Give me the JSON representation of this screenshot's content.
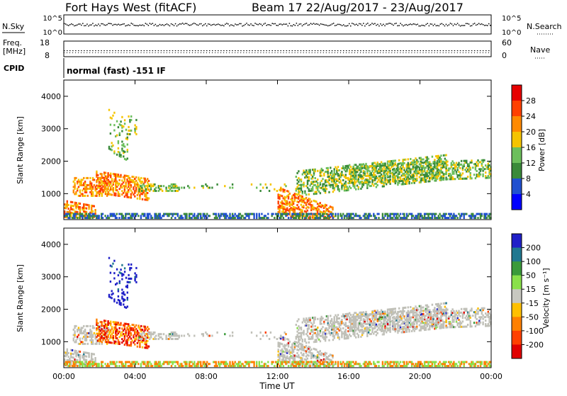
{
  "header": {
    "radar": "Fort Hays West (fitACF)",
    "beam_date": "Beam 17  22/Aug/2017 - 23/Aug/2017"
  },
  "top_panels": {
    "nsky_label": "N.Sky",
    "nsky_ticks": [
      "10^5",
      "10^0"
    ],
    "nsearch_label": "N.Search",
    "nsearch_ticks": [
      "10^5",
      "10^0"
    ],
    "freq_label_1": "Freq.",
    "freq_label_2": "[MHz]",
    "freq_ticks": [
      "18",
      "8"
    ],
    "nave_label": "Nave",
    "nave_ticks": [
      "60",
      "0"
    ],
    "cpid_label": "CPID",
    "cpid_text": "normal (fast) -151 IF"
  },
  "colors": {
    "power_scale": [
      "#0000ff",
      "#2050d0",
      "#3a8a3a",
      "#6cbf5c",
      "#f5c400",
      "#ff8a00",
      "#ff4000",
      "#e60000"
    ],
    "velocity_scale": [
      "#2020c8",
      "#207890",
      "#3a9a3a",
      "#8ae04a",
      "#c8c8c0",
      "#ffc000",
      "#ff8000",
      "#ff4000",
      "#e00000"
    ],
    "ground_scatter": "#c0c0b8"
  },
  "chart_data": [
    {
      "type": "heatmap",
      "title": "",
      "ylabel": "Slant Range [km]",
      "xlabel": "",
      "x_range": [
        "00:00",
        "24:00"
      ],
      "ylim": [
        200,
        4500
      ],
      "yticks": [
        "1000",
        "2000",
        "3000",
        "4000"
      ],
      "colorbar": {
        "label": "Power [dB]",
        "range": [
          0,
          32
        ],
        "ticks": [
          "4",
          "8",
          "12",
          "16",
          "20",
          "24",
          "28"
        ]
      }
    },
    {
      "type": "heatmap",
      "title": "",
      "ylabel": "Slant Range [km]",
      "xlabel": "Time UT",
      "x_range": [
        "00:00",
        "24:00"
      ],
      "ylim": [
        200,
        4500
      ],
      "yticks": [
        "1000",
        "2000",
        "3000",
        "4000"
      ],
      "xticks": [
        "00:00",
        "04:00",
        "08:00",
        "12:00",
        "16:00",
        "20:00",
        "00:00"
      ],
      "colorbar": {
        "label": "Velocity [m s⁻¹]",
        "range": [
          -250,
          250
        ],
        "ticks": [
          "200",
          "100",
          "50",
          "15",
          "-15",
          "-50",
          "-100",
          "-200"
        ]
      }
    }
  ]
}
